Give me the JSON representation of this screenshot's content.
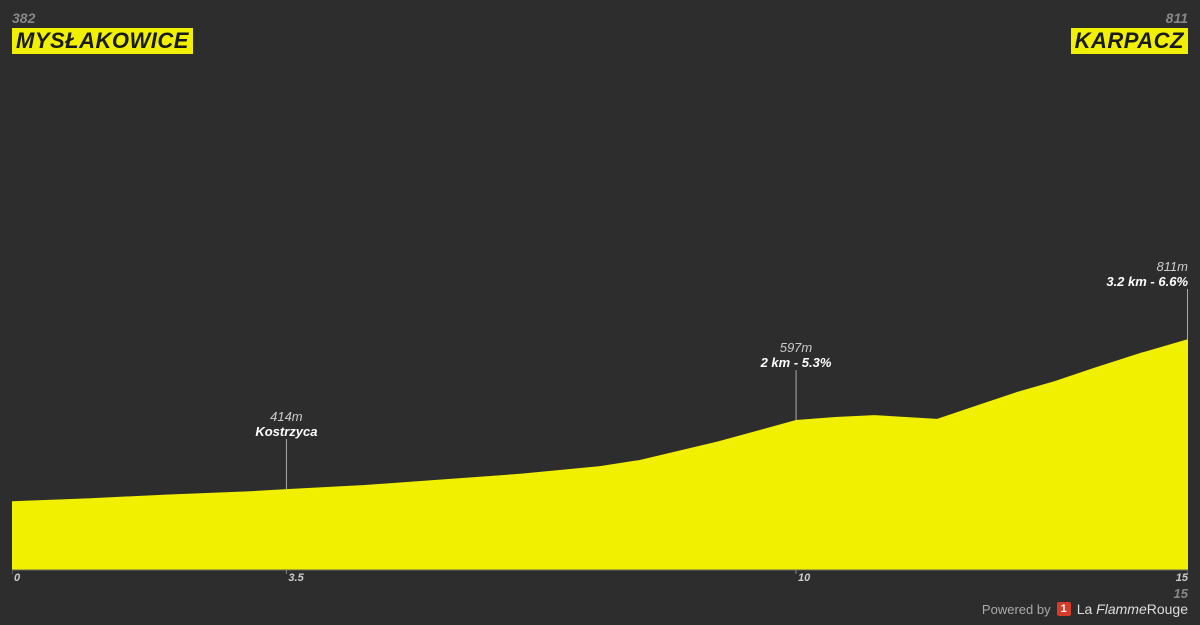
{
  "background_color": "#2d2d2d",
  "profile_color": "#f0f000",
  "start": {
    "altitude_label": "382",
    "city": "MYSŁAKOWICE"
  },
  "finish": {
    "altitude_label": "811",
    "city": "KARPACZ"
  },
  "total_distance_km": 15,
  "chart": {
    "type": "area",
    "xlim_km": [
      0,
      15
    ],
    "ylim_m": [
      200,
      1550
    ],
    "profile": [
      {
        "km": 0.0,
        "alt": 382
      },
      {
        "km": 1.0,
        "alt": 390
      },
      {
        "km": 2.0,
        "alt": 400
      },
      {
        "km": 3.0,
        "alt": 408
      },
      {
        "km": 3.5,
        "alt": 414
      },
      {
        "km": 4.5,
        "alt": 425
      },
      {
        "km": 5.5,
        "alt": 440
      },
      {
        "km": 6.5,
        "alt": 455
      },
      {
        "km": 7.5,
        "alt": 475
      },
      {
        "km": 8.0,
        "alt": 491
      },
      {
        "km": 9.0,
        "alt": 540
      },
      {
        "km": 10.0,
        "alt": 597
      },
      {
        "km": 10.5,
        "alt": 605
      },
      {
        "km": 11.0,
        "alt": 610
      },
      {
        "km": 11.8,
        "alt": 600
      },
      {
        "km": 12.3,
        "alt": 635
      },
      {
        "km": 12.8,
        "alt": 670
      },
      {
        "km": 13.3,
        "alt": 700
      },
      {
        "km": 13.8,
        "alt": 735
      },
      {
        "km": 14.4,
        "alt": 775
      },
      {
        "km": 15.0,
        "alt": 811
      }
    ],
    "x_ticks": [
      {
        "km": 0,
        "label": "0"
      },
      {
        "km": 3.5,
        "label": "3.5"
      },
      {
        "km": 10,
        "label": "10"
      },
      {
        "km": 15,
        "label": "15"
      }
    ]
  },
  "markers": [
    {
      "km": 3.5,
      "altitude_label": "414m",
      "name": "Kostrzyca",
      "segment": null
    },
    {
      "km": 10.0,
      "altitude_label": "597m",
      "name": null,
      "segment": "2 km - 5.3%"
    },
    {
      "km": 15.0,
      "altitude_label": "811m",
      "name": null,
      "segment": "3.2 km - 6.6%"
    }
  ],
  "footer": {
    "powered_by": "Powered by",
    "badge": "1",
    "brand_prefix": "La ",
    "brand_flamme": "Flamme",
    "brand_suffix": "Rouge"
  }
}
